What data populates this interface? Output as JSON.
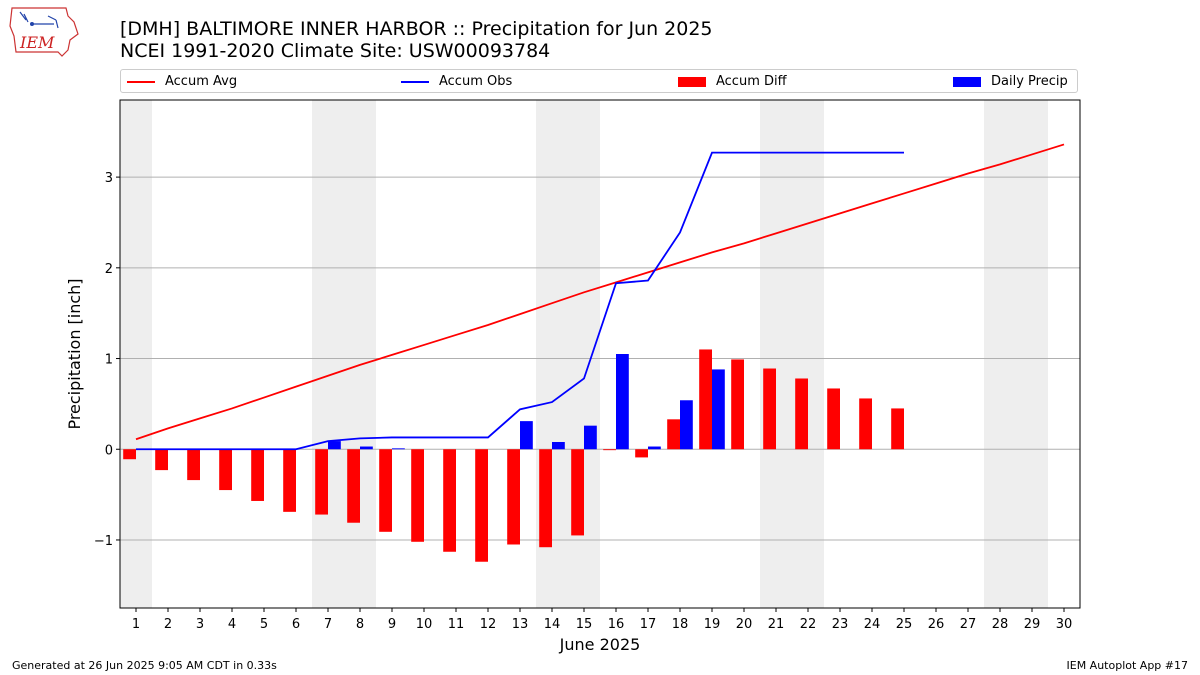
{
  "header": {
    "title_line1": "[DMH] BALTIMORE INNER HARBOR :: Precipitation for Jun 2025",
    "title_line2": "NCEI 1991-2020 Climate Site: USW00093784",
    "logo_text": "IEM"
  },
  "legend": {
    "accum_avg": "Accum Avg",
    "accum_obs": "Accum Obs",
    "accum_diff": "Accum Diff",
    "daily_precip": "Daily Precip"
  },
  "footer": {
    "generated": "Generated at 26 Jun 2025 9:05 AM CDT in 0.33s",
    "app": "IEM Autoplot App #17"
  },
  "colors": {
    "avg": "#ff0000",
    "obs": "#0000ff",
    "diff": "#ff0000",
    "daily": "#0000ff",
    "weekend_band": "#eeeeee",
    "grid": "#b0b0b0"
  },
  "chart_data": {
    "type": "bar",
    "xlabel": "June 2025",
    "ylabel": "Precipitation [inch]",
    "x": [
      1,
      2,
      3,
      4,
      5,
      6,
      7,
      8,
      9,
      10,
      11,
      12,
      13,
      14,
      15,
      16,
      17,
      18,
      19,
      20,
      21,
      22,
      23,
      24,
      25,
      26,
      27,
      28,
      29,
      30
    ],
    "xlim": [
      0.5,
      30.5
    ],
    "ylim": [
      -1.75,
      3.85
    ],
    "yticks": [
      -1,
      0,
      1,
      2,
      3
    ],
    "ytick_labels": [
      "−1",
      "0",
      "1",
      "2",
      "3"
    ],
    "grid": "horizontal",
    "legend_position": "top",
    "weekend_bands": [
      [
        0.5,
        1.5
      ],
      [
        6.5,
        8.5
      ],
      [
        13.5,
        15.5
      ],
      [
        20.5,
        22.5
      ],
      [
        27.5,
        29.5
      ]
    ],
    "series": [
      {
        "name": "Accum Avg",
        "kind": "line",
        "x": [
          1,
          2,
          3,
          4,
          5,
          6,
          7,
          8,
          9,
          10,
          11,
          12,
          13,
          14,
          15,
          16,
          17,
          18,
          19,
          20,
          21,
          22,
          23,
          24,
          25,
          26,
          27,
          28,
          29,
          30
        ],
        "values": [
          0.11,
          0.23,
          0.34,
          0.45,
          0.57,
          0.69,
          0.81,
          0.93,
          1.04,
          1.15,
          1.26,
          1.37,
          1.49,
          1.61,
          1.73,
          1.84,
          1.95,
          2.06,
          2.17,
          2.27,
          2.38,
          2.49,
          2.6,
          2.71,
          2.82,
          2.93,
          3.04,
          3.14,
          3.25,
          3.36
        ]
      },
      {
        "name": "Accum Obs",
        "kind": "line",
        "x": [
          1,
          2,
          3,
          4,
          5,
          6,
          7,
          8,
          9,
          10,
          11,
          12,
          13,
          14,
          15,
          16,
          17,
          18,
          19,
          20,
          21,
          22,
          23,
          24,
          25
        ],
        "values": [
          0.0,
          0.0,
          0.0,
          0.0,
          0.0,
          0.0,
          0.09,
          0.12,
          0.13,
          0.13,
          0.13,
          0.13,
          0.44,
          0.52,
          0.78,
          1.83,
          1.86,
          2.39,
          3.27,
          3.27,
          3.27,
          3.27,
          3.27,
          3.27,
          3.27
        ]
      },
      {
        "name": "Accum Diff",
        "kind": "bar",
        "x": [
          1,
          2,
          3,
          4,
          5,
          6,
          7,
          8,
          9,
          10,
          11,
          12,
          13,
          14,
          15,
          16,
          17,
          18,
          19,
          20,
          21,
          22,
          23,
          24,
          25
        ],
        "values": [
          -0.11,
          -0.23,
          -0.34,
          -0.45,
          -0.57,
          -0.69,
          -0.72,
          -0.81,
          -0.91,
          -1.02,
          -1.13,
          -1.24,
          -1.05,
          -1.08,
          -0.95,
          -0.01,
          -0.09,
          0.33,
          1.1,
          0.99,
          0.89,
          0.78,
          0.67,
          0.56,
          0.45
        ]
      },
      {
        "name": "Daily Precip",
        "kind": "bar",
        "x": [
          7,
          8,
          9,
          13,
          14,
          15,
          16,
          17,
          18,
          19
        ],
        "values": [
          0.09,
          0.03,
          0.01,
          0.31,
          0.08,
          0.26,
          1.05,
          0.03,
          0.54,
          0.88
        ]
      }
    ]
  }
}
